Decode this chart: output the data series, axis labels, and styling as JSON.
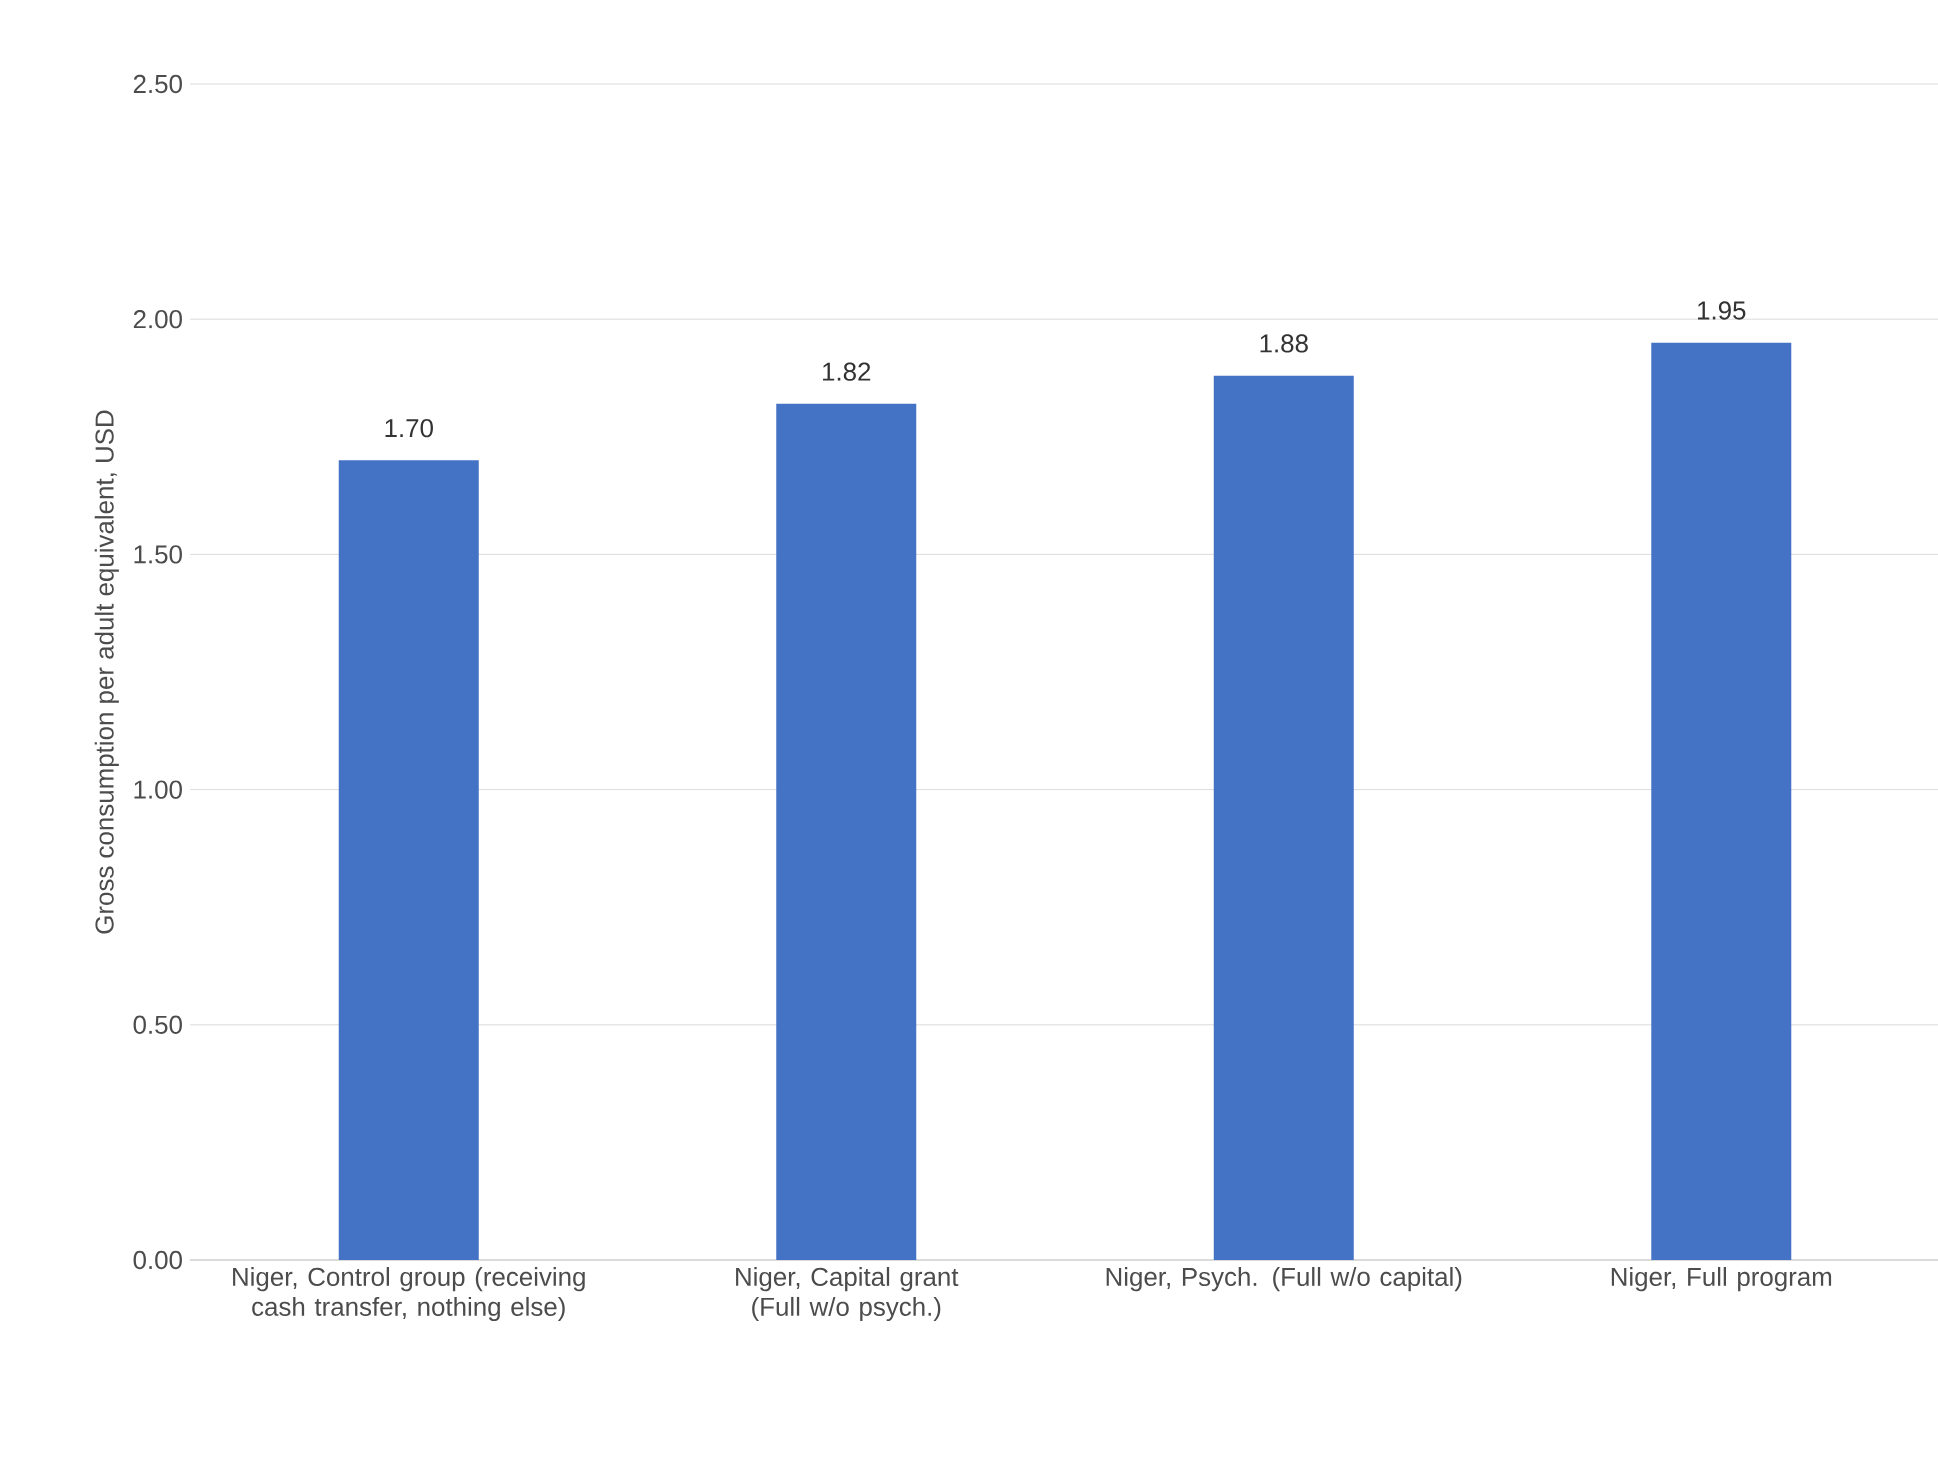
{
  "chart_data": {
    "type": "bar",
    "ylabel": "Gross consumption per adult equivalent, USD",
    "categories": [
      "Niger, Control group (receiving cash transfer, nothing else)",
      "Niger, Capital grant (Full w/o psych.)",
      "Niger, Psych. (Full w/o capital)",
      "Niger, Full program"
    ],
    "values": [
      1.7,
      1.82,
      1.88,
      1.95
    ],
    "value_labels": [
      "1.70",
      "1.82",
      "1.88",
      "1.95"
    ],
    "color": "#4472c4",
    "ylim": [
      0,
      2.5
    ],
    "yticks": [
      {
        "value": 0,
        "label": "0.00"
      },
      {
        "value": 0.5,
        "label": "0.50"
      },
      {
        "value": 1,
        "label": "1.00"
      },
      {
        "value": 1.5,
        "label": "1.50"
      },
      {
        "value": 2,
        "label": "2.00"
      },
      {
        "value": 2.5,
        "label": "2.50"
      }
    ],
    "grid": "y"
  }
}
